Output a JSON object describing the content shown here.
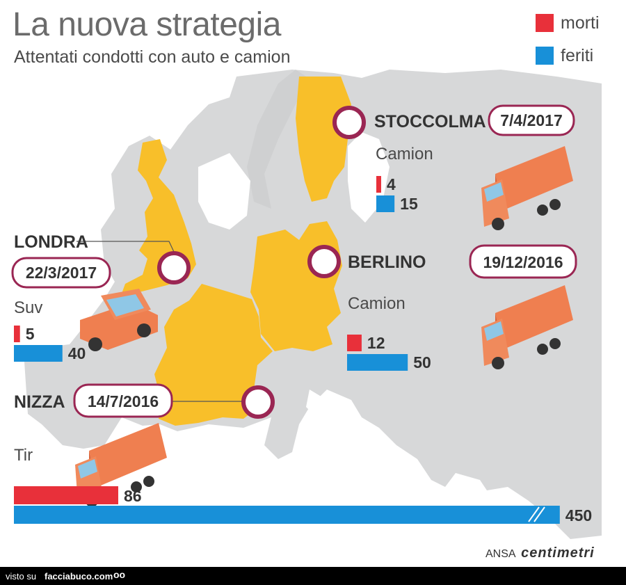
{
  "header": {
    "title": "La nuova strategia",
    "subtitle": "Attentati condotti con auto e camion"
  },
  "legend": [
    {
      "label": "morti",
      "color": "#e8303a"
    },
    {
      "label": "feriti",
      "color": "#1890d8"
    }
  ],
  "colors": {
    "map_land": "#d7d8d9",
    "map_highlight": "#f8bf2a",
    "marker_ring": "#9a2653",
    "vehicle": "#ef7f50"
  },
  "chart_data": {
    "type": "bar",
    "orientation": "horizontal",
    "title": "La nuova strategia",
    "subtitle": "Attentati condotti con auto e camion",
    "categories": [
      "STOCCOLMA",
      "LONDRA",
      "BERLINO",
      "NIZZA"
    ],
    "series": [
      {
        "name": "morti",
        "color": "#e8303a",
        "values": [
          4,
          5,
          12,
          86
        ]
      },
      {
        "name": "feriti",
        "color": "#1890d8",
        "values": [
          15,
          40,
          50,
          450
        ]
      }
    ],
    "events": [
      {
        "city": "STOCCOLMA",
        "date": "7/4/2017",
        "vehicle": "Camion",
        "morti": 4,
        "feriti": 15
      },
      {
        "city": "LONDRA",
        "date": "22/3/2017",
        "vehicle": "Suv",
        "morti": 5,
        "feriti": 40
      },
      {
        "city": "BERLINO",
        "date": "19/12/2016",
        "vehicle": "Camion",
        "morti": 12,
        "feriti": 50
      },
      {
        "city": "NIZZA",
        "date": "14/7/2016",
        "vehicle": "Tir",
        "morti": 86,
        "feriti": 450
      }
    ],
    "legend_position": "top-right",
    "grid": false
  },
  "credit": {
    "agency": "ANSA",
    "brand": "centimetri"
  },
  "footer": {
    "visto": "visto su",
    "site": "facciabuco.com",
    "eyes": "oo"
  }
}
